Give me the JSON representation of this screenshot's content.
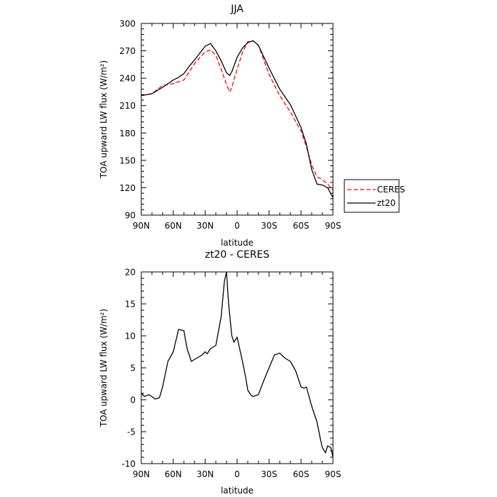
{
  "chart_data": [
    {
      "type": "line",
      "title": "JJA",
      "xlabel": "latitude",
      "ylabel": "TOA upward LW flux (W/m²)",
      "xlim": [
        90,
        -90
      ],
      "ylim": [
        90,
        300
      ],
      "x_ticks": [
        90,
        60,
        30,
        0,
        -30,
        -60,
        -90
      ],
      "x_tick_labels": [
        "90N",
        "60N",
        "30N",
        "0",
        "30S",
        "60S",
        "90S"
      ],
      "y_ticks": [
        90,
        120,
        150,
        180,
        210,
        240,
        270,
        300
      ],
      "y_tick_labels": [
        "90",
        "120",
        "150",
        "180",
        "210",
        "240",
        "270",
        "300"
      ],
      "legend_position": "right",
      "series": [
        {
          "name": "CERES",
          "color": "#ff0000",
          "style": "dashed",
          "x": [
            90,
            80,
            70,
            60,
            50,
            40,
            30,
            25,
            20,
            15,
            10,
            7,
            5,
            0,
            -5,
            -10,
            -15,
            -20,
            -30,
            -40,
            -50,
            -60,
            -65,
            -70,
            -75,
            -80,
            -85,
            -90
          ],
          "y": [
            221,
            223,
            232,
            234,
            238,
            256,
            269,
            271,
            265,
            250,
            233,
            225,
            230,
            250,
            268,
            280,
            281,
            276,
            244,
            221,
            203,
            182,
            165,
            145,
            132,
            129,
            124,
            117
          ]
        },
        {
          "name": "zt20",
          "color": "#000000",
          "style": "solid",
          "x": [
            90,
            80,
            70,
            60,
            55,
            50,
            45,
            40,
            30,
            25,
            20,
            15,
            10,
            7,
            5,
            0,
            -5,
            -10,
            -15,
            -20,
            -30,
            -40,
            -50,
            -60,
            -65,
            -70,
            -75,
            -80,
            -85,
            -90
          ],
          "y": [
            221,
            223,
            230,
            238,
            241,
            245,
            253,
            260,
            275,
            278,
            270,
            259,
            246,
            243,
            247,
            263,
            273,
            279,
            281,
            276,
            251,
            228,
            211,
            186,
            168,
            140,
            124,
            123,
            120,
            109
          ]
        }
      ]
    },
    {
      "type": "line",
      "title": "zt20 - CERES",
      "xlabel": "latitude",
      "ylabel": "TOA upward LW flux (W/m²)",
      "xlim": [
        90,
        -90
      ],
      "ylim": [
        -10,
        20
      ],
      "x_ticks": [
        90,
        60,
        30,
        0,
        -30,
        -60,
        -90
      ],
      "x_tick_labels": [
        "90N",
        "60N",
        "30N",
        "0",
        "30S",
        "60S",
        "90S"
      ],
      "y_ticks": [
        -10,
        -5,
        0,
        5,
        10,
        15,
        20
      ],
      "y_tick_labels": [
        "-10",
        "-5",
        "0",
        "5",
        "10",
        "15",
        "20"
      ],
      "series": [
        {
          "name": "zt20 - CERES",
          "color": "#000000",
          "style": "solid",
          "x": [
            90,
            87,
            83,
            80,
            77,
            73,
            70,
            65,
            60,
            55,
            50,
            47,
            43,
            38,
            33,
            30,
            28,
            25,
            20,
            15,
            12,
            10,
            8,
            5,
            3,
            0,
            -3,
            -5,
            -8,
            -10,
            -13,
            -15,
            -20,
            -25,
            -30,
            -35,
            -40,
            -45,
            -50,
            -55,
            -58,
            -60,
            -63,
            -65,
            -70,
            -75,
            -78,
            -80,
            -83,
            -85,
            -88,
            -90
          ],
          "y": [
            1,
            0.5,
            0.8,
            0.5,
            0.1,
            0.3,
            2,
            6,
            7.5,
            11,
            10.8,
            8,
            6,
            6.5,
            7,
            7.5,
            7.2,
            8,
            8.5,
            13,
            18.5,
            20,
            15,
            10,
            9,
            9.8,
            7.5,
            6,
            3.5,
            1.5,
            0.7,
            0.5,
            0.8,
            3,
            5,
            7,
            7.3,
            6.5,
            6,
            4.5,
            3,
            2,
            1.8,
            2,
            -1,
            -3.5,
            -6,
            -7.5,
            -8.3,
            -7.2,
            -7.5,
            -9
          ]
        }
      ]
    }
  ]
}
